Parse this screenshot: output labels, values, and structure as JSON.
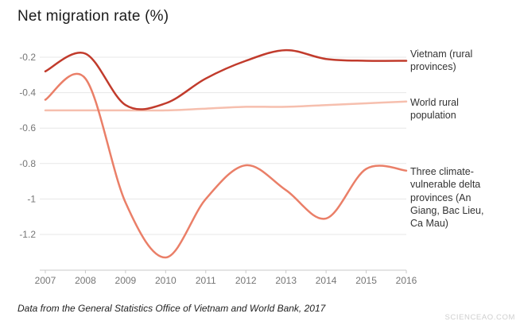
{
  "title": "Net migration rate (%)",
  "footer": "Data from the General Statistics Office of Vietnam and World Bank, 2017",
  "watermark": "SCIENCEAO.COM",
  "chart_data": {
    "type": "line",
    "title": "Net migration rate (%)",
    "x": [
      2007,
      2008,
      2009,
      2010,
      2011,
      2012,
      2013,
      2014,
      2015,
      2016
    ],
    "xlabel": "",
    "ylabel": "Net migration rate (%)",
    "y_ticks": [
      -0.2,
      -0.4,
      -0.6,
      -0.8,
      -1,
      -1.2
    ],
    "ylim": [
      -1.4,
      -0.08
    ],
    "grid": true,
    "legend_position": "right",
    "colors": {
      "grid": "#e7e7e7",
      "axis": "#c8c8c8",
      "tick_label": "#767676"
    },
    "series": [
      {
        "name": "Vietnam (rural provinces)",
        "color": "#c13b2c",
        "values": [
          -0.28,
          -0.18,
          -0.47,
          -0.46,
          -0.32,
          -0.22,
          -0.16,
          -0.21,
          -0.22,
          -0.22
        ]
      },
      {
        "name": "World rural population",
        "color": "#f6bfae",
        "values": [
          -0.5,
          -0.5,
          -0.5,
          -0.5,
          -0.49,
          -0.48,
          -0.48,
          -0.47,
          -0.46,
          -0.45
        ]
      },
      {
        "name": "Three climate-vulnerable delta provinces (An Giang, Bac Lieu, Ca Mau)",
        "color": "#ea7f68",
        "values": [
          -0.44,
          -0.32,
          -1.02,
          -1.33,
          -1.0,
          -0.81,
          -0.95,
          -1.11,
          -0.83,
          -0.84
        ]
      }
    ]
  }
}
